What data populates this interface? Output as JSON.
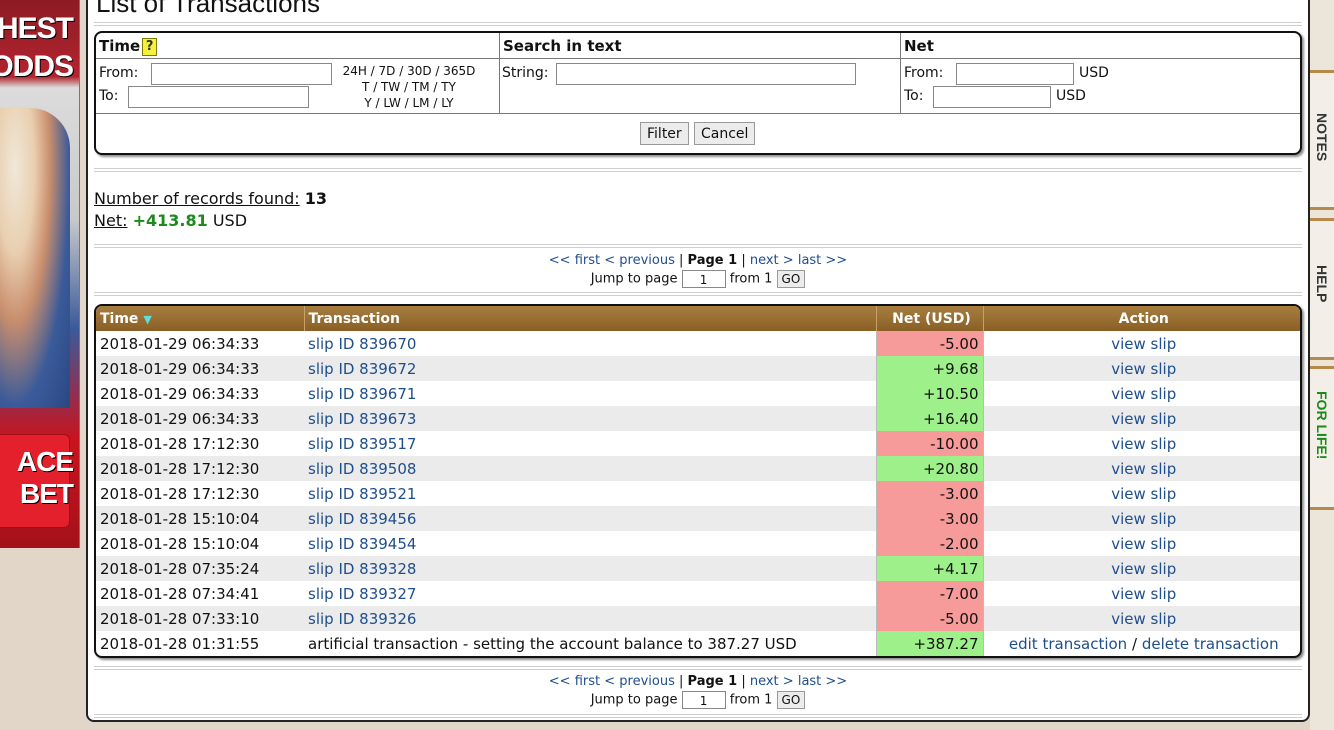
{
  "ad": {
    "lines": [
      "HEST",
      "ODDS",
      "ACE",
      "BET"
    ]
  },
  "page": {
    "title": "List of Transactions"
  },
  "filter": {
    "time": {
      "heading": "Time",
      "help": "?",
      "from_label": "From:",
      "to_label": "To:",
      "from_value": "",
      "to_value": "",
      "shortcuts": [
        "24H / 7D / 30D / 365D",
        "T / TW / TM / TY",
        "Y / LW / LM / LY"
      ]
    },
    "search": {
      "heading": "Search in text",
      "string_label": "String:",
      "string_value": ""
    },
    "net": {
      "heading": "Net",
      "from_label": "From:",
      "to_label": "To:",
      "from_value": "",
      "to_value": "",
      "unit": "USD"
    },
    "filter_button": "Filter",
    "cancel_button": "Cancel"
  },
  "summary": {
    "records_label": "Number of records found:",
    "records_count": "13",
    "net_label": "Net:",
    "net_value": "+413.81",
    "net_unit": "USD"
  },
  "pager": {
    "first": "<< first",
    "previous": "< previous",
    "separator": "|",
    "current": "Page 1",
    "next": "next >",
    "last": "last >>",
    "jump_label": "Jump to page",
    "jump_value": "1",
    "from_label": "from 1",
    "go": "GO"
  },
  "table": {
    "headers": {
      "time": "Time",
      "transaction": "Transaction",
      "net": "Net (USD)",
      "action": "Action"
    },
    "rows": [
      {
        "time": "2018-01-29 06:34:33",
        "transaction": "slip ID 839670",
        "net": "-5.00",
        "action": "view slip"
      },
      {
        "time": "2018-01-29 06:34:33",
        "transaction": "slip ID 839672",
        "net": "+9.68",
        "action": "view slip"
      },
      {
        "time": "2018-01-29 06:34:33",
        "transaction": "slip ID 839671",
        "net": "+10.50",
        "action": "view slip"
      },
      {
        "time": "2018-01-29 06:34:33",
        "transaction": "slip ID 839673",
        "net": "+16.40",
        "action": "view slip"
      },
      {
        "time": "2018-01-28 17:12:30",
        "transaction": "slip ID 839517",
        "net": "-10.00",
        "action": "view slip"
      },
      {
        "time": "2018-01-28 17:12:30",
        "transaction": "slip ID 839508",
        "net": "+20.80",
        "action": "view slip"
      },
      {
        "time": "2018-01-28 17:12:30",
        "transaction": "slip ID 839521",
        "net": "-3.00",
        "action": "view slip"
      },
      {
        "time": "2018-01-28 15:10:04",
        "transaction": "slip ID 839456",
        "net": "-3.00",
        "action": "view slip"
      },
      {
        "time": "2018-01-28 15:10:04",
        "transaction": "slip ID 839454",
        "net": "-2.00",
        "action": "view slip"
      },
      {
        "time": "2018-01-28 07:35:24",
        "transaction": "slip ID 839328",
        "net": "+4.17",
        "action": "view slip"
      },
      {
        "time": "2018-01-28 07:34:41",
        "transaction": "slip ID 839327",
        "net": "-7.00",
        "action": "view slip"
      },
      {
        "time": "2018-01-28 07:33:10",
        "transaction": "slip ID 839326",
        "net": "-5.00",
        "action": "view slip"
      }
    ],
    "artificial_row": {
      "time": "2018-01-28 01:31:55",
      "transaction": "artificial transaction - setting the account balance to 387.27 USD",
      "net": "+387.27",
      "edit": "edit transaction",
      "separator": "/",
      "delete": "delete transaction"
    }
  },
  "side_tabs": [
    "NOTES",
    "HELP",
    "FOR LIFE!"
  ],
  "colors": {
    "header_brown": "#8a5f25",
    "negative_cell": "#f79a9a",
    "positive_cell": "#9ef08a",
    "net_total_green": "#1e8a1e",
    "link": "#1f4e8c"
  }
}
